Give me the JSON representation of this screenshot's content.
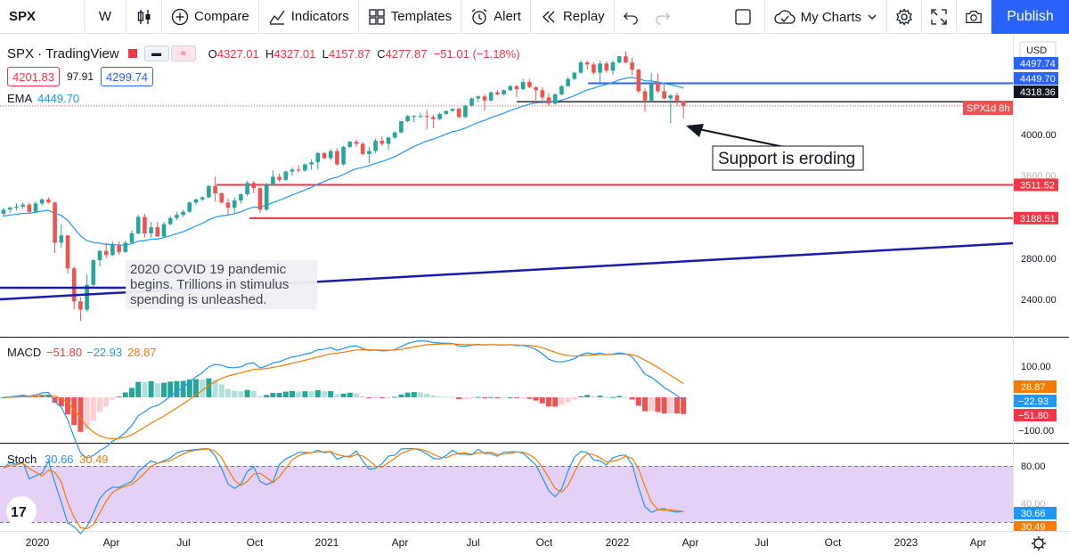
{
  "toolbar": {
    "symbol": "SPX",
    "interval": "W",
    "compare": "Compare",
    "indicators": "Indicators",
    "templates": "Templates",
    "alert": "Alert",
    "replay": "Replay",
    "my_charts": "My Charts",
    "publish": "Publish"
  },
  "legend": {
    "symbol_title": "SPX · TradingView",
    "ohlc": {
      "o_label": "O",
      "o": "4327.01",
      "h_label": "H",
      "h": "4327.01",
      "l_label": "L",
      "l": "4157.87",
      "c_label": "C",
      "c": "4277.87",
      "change": "−51.01 (−1.18%)"
    },
    "sell": "4201.83",
    "spread": "97.91",
    "buy": "4299.74",
    "ema_label": "EMA",
    "ema_value": "4449.70"
  },
  "price_axis": {
    "currency": "USD",
    "ticks": [
      "4000.00",
      "3600.00",
      "2800.00",
      "2400.00"
    ],
    "labels": [
      {
        "text": "4497.74",
        "bg": "#2962ff",
        "fg": "#ffffff",
        "value": 4497.74
      },
      {
        "text": "4449.70",
        "bg": "#2962ff",
        "fg": "#ffffff",
        "value": 4449.7
      },
      {
        "text": "4318.36",
        "bg": "#131722",
        "fg": "#ffffff",
        "value": 4318.36
      },
      {
        "text": "3511.52",
        "bg": "#f23645",
        "fg": "#ffffff",
        "value": 3511.52
      },
      {
        "text": "3188.51",
        "bg": "#f23645",
        "fg": "#ffffff",
        "value": 3188.51
      }
    ],
    "spx_tag": {
      "symbol": "SPX",
      "countdown": "1d 8h"
    }
  },
  "annotations": {
    "support_text": "Support is eroding",
    "covid_text_lines": [
      "2020 COVID 19 pandemic",
      "begins. Trillions in stimulus",
      "spending is unleashed."
    ]
  },
  "macd": {
    "label": "MACD",
    "v1": "−51.80",
    "v2": "−22.93",
    "v3": "28.87",
    "ticks": [
      "100.00",
      "−100.00"
    ],
    "axis_labels": [
      {
        "text": "28.87",
        "bg": "#f57c00"
      },
      {
        "text": "−22.93",
        "bg": "#2196f3"
      },
      {
        "text": "−51.80",
        "bg": "#f23645"
      }
    ]
  },
  "stoch": {
    "label": "Stoch",
    "k": "30.66",
    "d": "30.49",
    "ticks": [
      "80.00",
      "40.00"
    ],
    "axis_labels": [
      {
        "text": "30.66",
        "bg": "#2196f3"
      },
      {
        "text": "30.49",
        "bg": "#f57c00"
      }
    ]
  },
  "time_axis": {
    "labels": [
      "2020",
      "Apr",
      "Jul",
      "Oct",
      "2021",
      "Apr",
      "Jul",
      "Oct",
      "2022",
      "Apr",
      "Jul",
      "Oct",
      "2023",
      "Apr"
    ]
  },
  "colors": {
    "up": "#26a69a",
    "down": "#ef5350",
    "ema": "#2196f3",
    "support_red": "#f23645",
    "trend_blue": "#1a1aad",
    "stoch_band": "#e1c9f5"
  },
  "chart_data": {
    "type": "candlestick",
    "title": "SPX · TradingView",
    "interval": "W",
    "ylim": [
      2100,
      4750
    ],
    "candles": [
      {
        "x": "2020-01",
        "o": 3230,
        "h": 3290,
        "l": 3200,
        "c": 3270
      },
      {
        "x": "2020-01",
        "o": 3270,
        "h": 3300,
        "l": 3240,
        "c": 3290
      },
      {
        "x": "2020-01",
        "o": 3290,
        "h": 3330,
        "l": 3260,
        "c": 3300
      },
      {
        "x": "2020-01",
        "o": 3300,
        "h": 3340,
        "l": 3280,
        "c": 3320
      },
      {
        "x": "2020-02",
        "o": 3320,
        "h": 3340,
        "l": 3230,
        "c": 3250
      },
      {
        "x": "2020-02",
        "o": 3250,
        "h": 3350,
        "l": 3240,
        "c": 3330
      },
      {
        "x": "2020-02",
        "o": 3330,
        "h": 3380,
        "l": 3310,
        "c": 3370
      },
      {
        "x": "2020-02",
        "o": 3370,
        "h": 3390,
        "l": 3330,
        "c": 3340
      },
      {
        "x": "2020-03",
        "o": 3340,
        "h": 3350,
        "l": 2850,
        "c": 2950
      },
      {
        "x": "2020-03",
        "o": 2950,
        "h": 3130,
        "l": 2900,
        "c": 3020
      },
      {
        "x": "2020-03",
        "o": 3020,
        "h": 3000,
        "l": 2650,
        "c": 2700
      },
      {
        "x": "2020-03",
        "o": 2700,
        "h": 2720,
        "l": 2300,
        "c": 2380
      },
      {
        "x": "2020-03",
        "o": 2380,
        "h": 2420,
        "l": 2190,
        "c": 2300
      },
      {
        "x": "2020-04",
        "o": 2300,
        "h": 2640,
        "l": 2280,
        "c": 2540
      },
      {
        "x": "2020-04",
        "o": 2540,
        "h": 2790,
        "l": 2520,
        "c": 2780
      },
      {
        "x": "2020-04",
        "o": 2780,
        "h": 2880,
        "l": 2720,
        "c": 2870
      },
      {
        "x": "2020-04",
        "o": 2870,
        "h": 2950,
        "l": 2800,
        "c": 2830
      },
      {
        "x": "2020-05",
        "o": 2830,
        "h": 2960,
        "l": 2820,
        "c": 2930
      },
      {
        "x": "2020-05",
        "o": 2930,
        "h": 2960,
        "l": 2830,
        "c": 2860
      },
      {
        "x": "2020-05",
        "o": 2860,
        "h": 2970,
        "l": 2850,
        "c": 2950
      },
      {
        "x": "2020-05",
        "o": 2950,
        "h": 3070,
        "l": 2940,
        "c": 3040
      },
      {
        "x": "2020-06",
        "o": 3040,
        "h": 3220,
        "l": 3030,
        "c": 3200
      },
      {
        "x": "2020-06",
        "o": 3200,
        "h": 3230,
        "l": 3000,
        "c": 3040
      },
      {
        "x": "2020-06",
        "o": 3040,
        "h": 3150,
        "l": 3000,
        "c": 3100
      },
      {
        "x": "2020-06",
        "o": 3100,
        "h": 3150,
        "l": 3010,
        "c": 3010
      },
      {
        "x": "2020-07",
        "o": 3010,
        "h": 3150,
        "l": 3000,
        "c": 3130
      },
      {
        "x": "2020-07",
        "o": 3130,
        "h": 3210,
        "l": 3120,
        "c": 3190
      },
      {
        "x": "2020-07",
        "o": 3190,
        "h": 3250,
        "l": 3170,
        "c": 3220
      },
      {
        "x": "2020-07",
        "o": 3220,
        "h": 3270,
        "l": 3200,
        "c": 3250
      },
      {
        "x": "2020-08",
        "o": 3250,
        "h": 3350,
        "l": 3240,
        "c": 3340
      },
      {
        "x": "2020-08",
        "o": 3340,
        "h": 3380,
        "l": 3320,
        "c": 3370
      },
      {
        "x": "2020-08",
        "o": 3370,
        "h": 3400,
        "l": 3350,
        "c": 3390
      },
      {
        "x": "2020-08",
        "o": 3390,
        "h": 3510,
        "l": 3380,
        "c": 3500
      },
      {
        "x": "2020-09",
        "o": 3500,
        "h": 3590,
        "l": 3350,
        "c": 3430
      },
      {
        "x": "2020-09",
        "o": 3430,
        "h": 3440,
        "l": 3330,
        "c": 3340
      },
      {
        "x": "2020-09",
        "o": 3340,
        "h": 3380,
        "l": 3220,
        "c": 3290
      },
      {
        "x": "2020-09",
        "o": 3290,
        "h": 3390,
        "l": 3240,
        "c": 3360
      },
      {
        "x": "2020-10",
        "o": 3360,
        "h": 3430,
        "l": 3330,
        "c": 3420
      },
      {
        "x": "2020-10",
        "o": 3420,
        "h": 3550,
        "l": 3400,
        "c": 3530
      },
      {
        "x": "2020-10",
        "o": 3530,
        "h": 3550,
        "l": 3430,
        "c": 3480
      },
      {
        "x": "2020-10",
        "o": 3480,
        "h": 3490,
        "l": 3240,
        "c": 3270
      },
      {
        "x": "2020-11",
        "o": 3270,
        "h": 3530,
        "l": 3260,
        "c": 3510
      },
      {
        "x": "2020-11",
        "o": 3510,
        "h": 3650,
        "l": 3500,
        "c": 3590
      },
      {
        "x": "2020-11",
        "o": 3590,
        "h": 3620,
        "l": 3540,
        "c": 3560
      },
      {
        "x": "2020-11",
        "o": 3560,
        "h": 3650,
        "l": 3550,
        "c": 3640
      },
      {
        "x": "2020-12",
        "o": 3640,
        "h": 3680,
        "l": 3600,
        "c": 3660
      },
      {
        "x": "2020-12",
        "o": 3660,
        "h": 3700,
        "l": 3630,
        "c": 3650
      },
      {
        "x": "2020-12",
        "o": 3650,
        "h": 3720,
        "l": 3640,
        "c": 3710
      },
      {
        "x": "2020-12",
        "o": 3710,
        "h": 3760,
        "l": 3660,
        "c": 3730
      },
      {
        "x": "2021-01",
        "o": 3730,
        "h": 3830,
        "l": 3660,
        "c": 3820
      },
      {
        "x": "2021-01",
        "o": 3820,
        "h": 3830,
        "l": 3760,
        "c": 3770
      },
      {
        "x": "2021-01",
        "o": 3770,
        "h": 3860,
        "l": 3750,
        "c": 3840
      },
      {
        "x": "2021-01",
        "o": 3840,
        "h": 3870,
        "l": 3700,
        "c": 3710
      },
      {
        "x": "2021-02",
        "o": 3710,
        "h": 3890,
        "l": 3700,
        "c": 3880
      },
      {
        "x": "2021-02",
        "o": 3880,
        "h": 3940,
        "l": 3870,
        "c": 3930
      },
      {
        "x": "2021-02",
        "o": 3930,
        "h": 3950,
        "l": 3880,
        "c": 3910
      },
      {
        "x": "2021-02",
        "o": 3910,
        "h": 3930,
        "l": 3800,
        "c": 3810
      },
      {
        "x": "2021-03",
        "o": 3810,
        "h": 3880,
        "l": 3720,
        "c": 3840
      },
      {
        "x": "2021-03",
        "o": 3840,
        "h": 3960,
        "l": 3820,
        "c": 3940
      },
      {
        "x": "2021-03",
        "o": 3940,
        "h": 3980,
        "l": 3890,
        "c": 3910
      },
      {
        "x": "2021-03",
        "o": 3910,
        "h": 3980,
        "l": 3850,
        "c": 3970
      },
      {
        "x": "2021-04",
        "o": 3970,
        "h": 4030,
        "l": 3960,
        "c": 4020
      },
      {
        "x": "2021-04",
        "o": 4020,
        "h": 4130,
        "l": 4010,
        "c": 4130
      },
      {
        "x": "2021-04",
        "o": 4130,
        "h": 4190,
        "l": 4120,
        "c": 4180
      },
      {
        "x": "2021-04",
        "o": 4180,
        "h": 4190,
        "l": 4120,
        "c": 4180
      },
      {
        "x": "2021-05",
        "o": 4180,
        "h": 4210,
        "l": 4160,
        "c": 4180
      },
      {
        "x": "2021-05",
        "o": 4180,
        "h": 4240,
        "l": 4050,
        "c": 4170
      },
      {
        "x": "2021-05",
        "o": 4170,
        "h": 4190,
        "l": 4060,
        "c": 4150
      },
      {
        "x": "2021-05",
        "o": 4150,
        "h": 4210,
        "l": 4140,
        "c": 4200
      },
      {
        "x": "2021-06",
        "o": 4200,
        "h": 4230,
        "l": 4190,
        "c": 4230
      },
      {
        "x": "2021-06",
        "o": 4230,
        "h": 4250,
        "l": 4220,
        "c": 4250
      },
      {
        "x": "2021-06",
        "o": 4250,
        "h": 4260,
        "l": 4160,
        "c": 4170
      },
      {
        "x": "2021-06",
        "o": 4170,
        "h": 4290,
        "l": 4160,
        "c": 4280
      },
      {
        "x": "2021-07",
        "o": 4280,
        "h": 4360,
        "l": 4270,
        "c": 4350
      },
      {
        "x": "2021-07",
        "o": 4350,
        "h": 4380,
        "l": 4310,
        "c": 4370
      },
      {
        "x": "2021-07",
        "o": 4370,
        "h": 4390,
        "l": 4230,
        "c": 4330
      },
      {
        "x": "2021-07",
        "o": 4330,
        "h": 4420,
        "l": 4320,
        "c": 4410
      },
      {
        "x": "2021-08",
        "o": 4410,
        "h": 4430,
        "l": 4380,
        "c": 4390
      },
      {
        "x": "2021-08",
        "o": 4390,
        "h": 4440,
        "l": 4380,
        "c": 4430
      },
      {
        "x": "2021-08",
        "o": 4430,
        "h": 4480,
        "l": 4420,
        "c": 4470
      },
      {
        "x": "2021-08",
        "o": 4470,
        "h": 4480,
        "l": 4360,
        "c": 4440
      },
      {
        "x": "2021-09",
        "o": 4440,
        "h": 4540,
        "l": 4430,
        "c": 4510
      },
      {
        "x": "2021-09",
        "o": 4510,
        "h": 4540,
        "l": 4450,
        "c": 4460
      },
      {
        "x": "2021-09",
        "o": 4460,
        "h": 4470,
        "l": 4300,
        "c": 4430
      },
      {
        "x": "2021-09",
        "o": 4430,
        "h": 4460,
        "l": 4300,
        "c": 4360
      },
      {
        "x": "2021-10",
        "o": 4360,
        "h": 4400,
        "l": 4280,
        "c": 4300
      },
      {
        "x": "2021-10",
        "o": 4300,
        "h": 4400,
        "l": 4290,
        "c": 4390
      },
      {
        "x": "2021-10",
        "o": 4390,
        "h": 4480,
        "l": 4380,
        "c": 4470
      },
      {
        "x": "2021-10",
        "o": 4470,
        "h": 4560,
        "l": 4460,
        "c": 4540
      },
      {
        "x": "2021-11",
        "o": 4540,
        "h": 4610,
        "l": 4530,
        "c": 4600
      },
      {
        "x": "2021-11",
        "o": 4600,
        "h": 4720,
        "l": 4590,
        "c": 4700
      },
      {
        "x": "2021-11",
        "o": 4700,
        "h": 4720,
        "l": 4630,
        "c": 4680
      },
      {
        "x": "2021-11",
        "o": 4680,
        "h": 4700,
        "l": 4580,
        "c": 4600
      },
      {
        "x": "2021-12",
        "o": 4600,
        "h": 4720,
        "l": 4500,
        "c": 4690
      },
      {
        "x": "2021-12",
        "o": 4690,
        "h": 4710,
        "l": 4600,
        "c": 4620
      },
      {
        "x": "2021-12",
        "o": 4620,
        "h": 4720,
        "l": 4580,
        "c": 4700
      },
      {
        "x": "2021-12",
        "o": 4700,
        "h": 4760,
        "l": 4690,
        "c": 4760
      },
      {
        "x": "2022-01",
        "o": 4760,
        "h": 4810,
        "l": 4690,
        "c": 4700
      },
      {
        "x": "2022-01",
        "o": 4700,
        "h": 4750,
        "l": 4580,
        "c": 4630
      },
      {
        "x": "2022-01",
        "o": 4630,
        "h": 4640,
        "l": 4400,
        "c": 4420
      },
      {
        "x": "2022-01",
        "o": 4420,
        "h": 4450,
        "l": 4220,
        "c": 4330
      },
      {
        "x": "2022-02",
        "o": 4330,
        "h": 4600,
        "l": 4320,
        "c": 4500
      },
      {
        "x": "2022-02",
        "o": 4500,
        "h": 4590,
        "l": 4400,
        "c": 4420
      },
      {
        "x": "2022-02",
        "o": 4420,
        "h": 4490,
        "l": 4340,
        "c": 4350
      },
      {
        "x": "2022-02",
        "o": 4350,
        "h": 4390,
        "l": 4110,
        "c": 4380
      },
      {
        "x": "2022-03",
        "o": 4380,
        "h": 4410,
        "l": 4280,
        "c": 4330
      },
      {
        "x": "2022-03",
        "o": 4327.01,
        "h": 4327.01,
        "l": 4157.87,
        "c": 4277.87
      }
    ]
  }
}
